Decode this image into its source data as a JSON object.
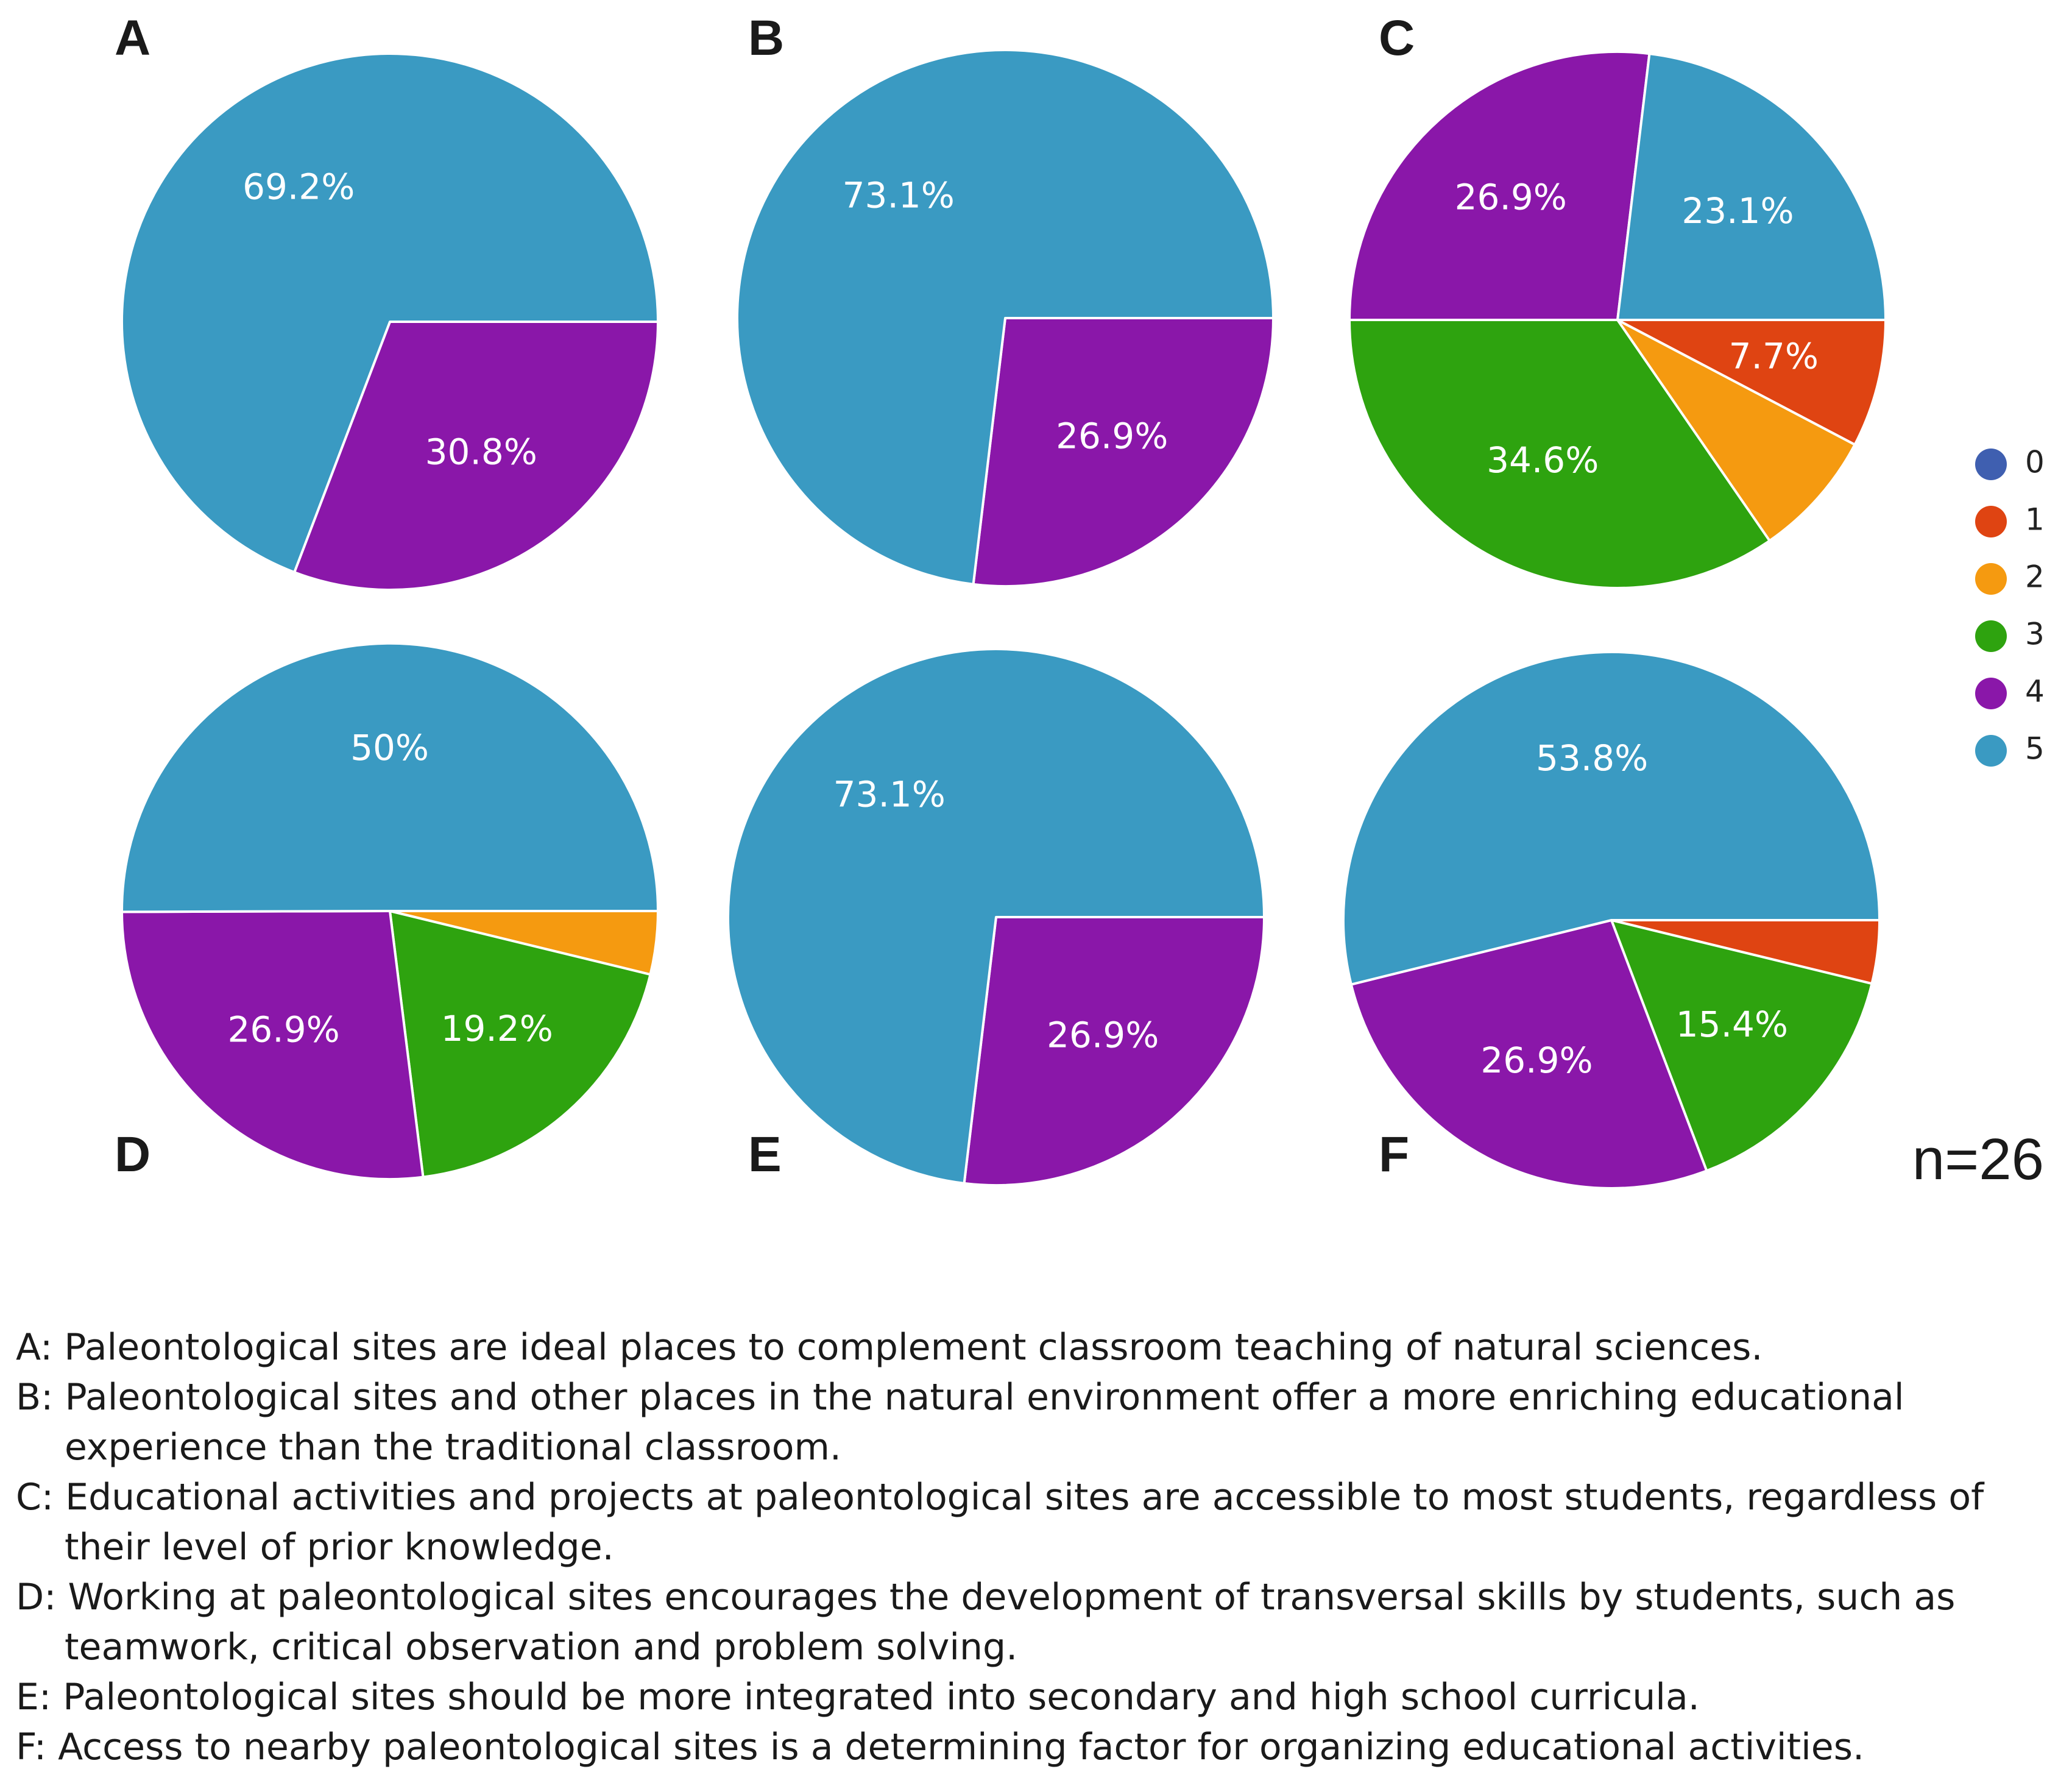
{
  "chart_data": [
    {
      "type": "pie",
      "panel": "A",
      "total_n": 26,
      "categories": [
        "0",
        "1",
        "2",
        "3",
        "4",
        "5"
      ],
      "values": [
        0,
        0,
        0,
        0,
        30.8,
        69.2
      ],
      "labels": [
        "",
        "",
        "",
        "",
        "30.8%",
        "69.2%"
      ]
    },
    {
      "type": "pie",
      "panel": "B",
      "total_n": 26,
      "categories": [
        "0",
        "1",
        "2",
        "3",
        "4",
        "5"
      ],
      "values": [
        0,
        0,
        0,
        0,
        26.9,
        73.1
      ],
      "labels": [
        "",
        "",
        "",
        "",
        "26.9%",
        "73.1%"
      ]
    },
    {
      "type": "pie",
      "panel": "C",
      "total_n": 26,
      "categories": [
        "0",
        "1",
        "2",
        "3",
        "4",
        "5"
      ],
      "values": [
        0,
        7.7,
        7.7,
        34.6,
        26.9,
        23.1
      ],
      "labels": [
        "",
        "7.7%",
        "",
        "34.6%",
        "26.9%",
        "23.1%"
      ]
    },
    {
      "type": "pie",
      "panel": "D",
      "total_n": 26,
      "categories": [
        "0",
        "1",
        "2",
        "3",
        "4",
        "5"
      ],
      "values": [
        0,
        0,
        3.8,
        19.2,
        26.9,
        50
      ],
      "labels": [
        "",
        "",
        "",
        "19.2%",
        "26.9%",
        "50%"
      ]
    },
    {
      "type": "pie",
      "panel": "E",
      "total_n": 26,
      "categories": [
        "0",
        "1",
        "2",
        "3",
        "4",
        "5"
      ],
      "values": [
        0,
        0,
        0,
        0,
        26.9,
        73.1
      ],
      "labels": [
        "",
        "",
        "",
        "",
        "26.9%",
        "73.1%"
      ]
    },
    {
      "type": "pie",
      "panel": "F",
      "total_n": 26,
      "categories": [
        "0",
        "1",
        "2",
        "3",
        "4",
        "5"
      ],
      "values": [
        0,
        3.8,
        0,
        15.4,
        26.9,
        53.8
      ],
      "labels": [
        "",
        "",
        "",
        "15.4%",
        "26.9%",
        "53.8%"
      ]
    }
  ],
  "legend": {
    "placement": "right",
    "entries": [
      {
        "label": "0",
        "color": "#3f5fb0"
      },
      {
        "label": "1",
        "color": "#df4412"
      },
      {
        "label": "2",
        "color": "#f59a10"
      },
      {
        "label": "3",
        "color": "#2ea30f"
      },
      {
        "label": "4",
        "color": "#8a17a9"
      },
      {
        "label": "5",
        "color": "#3a9ac2"
      }
    ]
  },
  "sample_size_label": "n=26",
  "captions": [
    "A: Paleontological sites are ideal places to complement classroom teaching of natural sciences.",
    "B: Paleontological sites and other places in the natural environment offer a more enriching educational experience than the traditional classroom.",
    "C: Educational activities and projects at paleontological sites are accessible to most students, regardless of their level of prior knowledge.",
    "D: Working at paleontological sites encourages the development of transversal skills by students, such as teamwork, critical observation and problem solving.",
    "E: Paleontological sites should be more integrated into secondary and high school curricula.",
    "F: Access to nearby paleontological sites is a determining factor for organizing educational activities."
  ]
}
